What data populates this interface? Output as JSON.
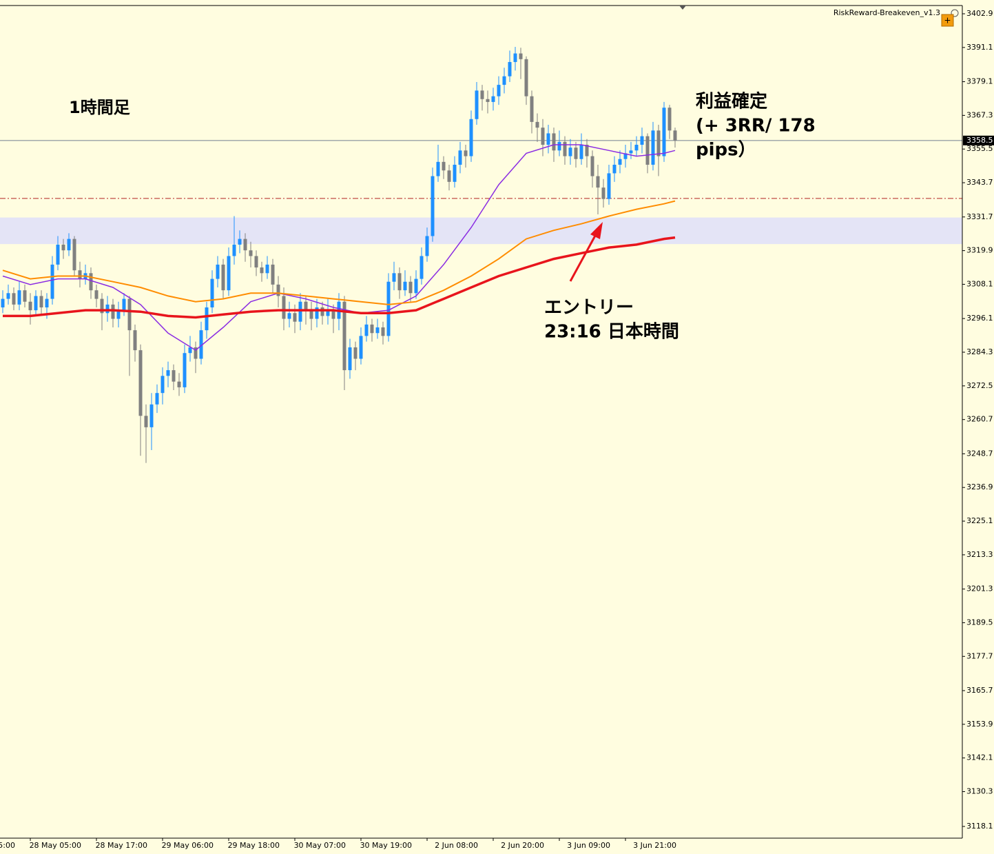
{
  "chart_data": {
    "type": "candlestick",
    "indicator_label": "RiskReward-Breakeven_v1.3",
    "up_color": "#1e90ff",
    "down_color": "#808080",
    "ylim": [
      3114.0,
      3405.8
    ],
    "yticks": [
      {
        "value": 3402.9,
        "label": "3402.9"
      },
      {
        "value": 3391.1,
        "label": "3391.1"
      },
      {
        "value": 3379.1,
        "label": "3379.1"
      },
      {
        "value": 3367.3,
        "label": "3367.3"
      },
      {
        "value": 3355.5,
        "label": "3355.5"
      },
      {
        "value": 3343.7,
        "label": "3343.7"
      },
      {
        "value": 3331.7,
        "label": "3331.7"
      },
      {
        "value": 3319.9,
        "label": "3319.9"
      },
      {
        "value": 3308.1,
        "label": "3308.1"
      },
      {
        "value": 3296.1,
        "label": "3296.1"
      },
      {
        "value": 3284.3,
        "label": "3284.3"
      },
      {
        "value": 3272.5,
        "label": "3272.5"
      },
      {
        "value": 3260.7,
        "label": "3260.7"
      },
      {
        "value": 3248.7,
        "label": "3248.7"
      },
      {
        "value": 3236.9,
        "label": "3236.9"
      },
      {
        "value": 3225.1,
        "label": "3225.1"
      },
      {
        "value": 3213.3,
        "label": "3213.3"
      },
      {
        "value": 3201.3,
        "label": "3201.3"
      },
      {
        "value": 3189.5,
        "label": "3189.5"
      },
      {
        "value": 3177.7,
        "label": "3177.7"
      },
      {
        "value": 3165.7,
        "label": "3165.7"
      },
      {
        "value": 3153.9,
        "label": "3153.9"
      },
      {
        "value": 3142.1,
        "label": "3142.1"
      },
      {
        "value": 3130.3,
        "label": "3130.3"
      },
      {
        "value": 3118.1,
        "label": "3118.1"
      }
    ],
    "xticks": [
      {
        "value": -7,
        "label": "5:00"
      },
      {
        "value": 5,
        "label": "28 May 05:00"
      },
      {
        "value": 17,
        "label": "28 May 17:00"
      },
      {
        "value": 29,
        "label": "29 May 06:00"
      },
      {
        "value": 41,
        "label": "29 May 18:00"
      },
      {
        "value": 53,
        "label": "30 May 07:00"
      },
      {
        "value": 65,
        "label": "30 May 19:00"
      },
      {
        "value": 77,
        "label": "2 Jun 08:00"
      },
      {
        "value": 89,
        "label": "2 Jun 20:00"
      },
      {
        "value": 101,
        "label": "3 Jun 09:00"
      },
      {
        "value": 113,
        "label": "3 Jun 21:00"
      }
    ],
    "last_price": 3358.5,
    "zone": {
      "from": 3322.2,
      "to": 3331.5,
      "color": "#e4e4f6"
    },
    "level": {
      "value": 3338.2,
      "color": "#b22222"
    },
    "ohlc": [
      [
        3300,
        3306,
        3298,
        3303
      ],
      [
        3303,
        3308,
        3301,
        3305
      ],
      [
        3305,
        3307,
        3299,
        3301
      ],
      [
        3301,
        3309,
        3299,
        3306
      ],
      [
        3306,
        3308,
        3300,
        3302
      ],
      [
        3302,
        3305,
        3294,
        3299
      ],
      [
        3299,
        3306,
        3297,
        3304
      ],
      [
        3304,
        3306,
        3297,
        3300
      ],
      [
        3300,
        3305,
        3296,
        3303
      ],
      [
        3303,
        3318,
        3301,
        3315
      ],
      [
        3315,
        3325,
        3313,
        3322
      ],
      [
        3322,
        3324,
        3317,
        3320
      ],
      [
        3320,
        3326,
        3318,
        3324
      ],
      [
        3324,
        3325,
        3311,
        3313
      ],
      [
        3313,
        3316,
        3307,
        3310
      ],
      [
        3310,
        3315,
        3308,
        3312
      ],
      [
        3312,
        3314,
        3303,
        3306
      ],
      [
        3306,
        3308,
        3300,
        3303
      ],
      [
        3303,
        3305,
        3292,
        3298
      ],
      [
        3298,
        3304,
        3295,
        3301
      ],
      [
        3301,
        3303,
        3293,
        3296
      ],
      [
        3296,
        3302,
        3293,
        3299
      ],
      [
        3299,
        3305,
        3297,
        3303
      ],
      [
        3303,
        3304,
        3276,
        3292
      ],
      [
        3292,
        3294,
        3281,
        3285
      ],
      [
        3285,
        3287,
        3248,
        3262
      ],
      [
        3262,
        3266,
        3245.5,
        3258
      ],
      [
        3258,
        3270,
        3250,
        3266
      ],
      [
        3266,
        3273,
        3263,
        3270
      ],
      [
        3270,
        3279,
        3266,
        3276
      ],
      [
        3276,
        3281,
        3272,
        3278
      ],
      [
        3278,
        3280,
        3271,
        3274
      ],
      [
        3274,
        3277,
        3269,
        3272
      ],
      [
        3272,
        3287,
        3270,
        3284
      ],
      [
        3284,
        3290,
        3281,
        3286
      ],
      [
        3286,
        3288,
        3277,
        3282
      ],
      [
        3282,
        3295,
        3280,
        3292
      ],
      [
        3292,
        3302,
        3289,
        3300
      ],
      [
        3300,
        3313,
        3298,
        3310
      ],
      [
        3310,
        3318,
        3307,
        3315
      ],
      [
        3315,
        3317,
        3303,
        3306
      ],
      [
        3306,
        3321,
        3304,
        3318
      ],
      [
        3318,
        3332,
        3315,
        3322
      ],
      [
        3322,
        3327,
        3319,
        3324
      ],
      [
        3324,
        3326,
        3316,
        3320
      ],
      [
        3320,
        3323,
        3314,
        3318
      ],
      [
        3318,
        3320,
        3311,
        3314
      ],
      [
        3314,
        3316,
        3309,
        3312
      ],
      [
        3312,
        3318,
        3310,
        3315
      ],
      [
        3315,
        3317,
        3305,
        3308
      ],
      [
        3308,
        3311,
        3300,
        3304
      ],
      [
        3304,
        3307,
        3292,
        3296
      ],
      [
        3296,
        3302,
        3293,
        3298
      ],
      [
        3298,
        3301,
        3291,
        3295
      ],
      [
        3295,
        3305,
        3292,
        3302
      ],
      [
        3302,
        3304,
        3294,
        3299
      ],
      [
        3299,
        3302,
        3292,
        3296
      ],
      [
        3296,
        3303,
        3293,
        3300
      ],
      [
        3300,
        3302,
        3294,
        3297
      ],
      [
        3297,
        3303,
        3294,
        3299
      ],
      [
        3299,
        3301,
        3291,
        3296
      ],
      [
        3296,
        3305,
        3292,
        3302
      ],
      [
        3302,
        3304,
        3271,
        3278
      ],
      [
        3278,
        3289,
        3275,
        3286
      ],
      [
        3286,
        3288,
        3278,
        3282
      ],
      [
        3282,
        3293,
        3280,
        3290
      ],
      [
        3290,
        3297,
        3288,
        3294
      ],
      [
        3294,
        3296,
        3288,
        3291
      ],
      [
        3291,
        3296,
        3289,
        3293
      ],
      [
        3293,
        3295,
        3287,
        3290
      ],
      [
        3290,
        3312,
        3288,
        3309
      ],
      [
        3309,
        3316,
        3306,
        3312
      ],
      [
        3312,
        3314,
        3303,
        3306
      ],
      [
        3306,
        3313,
        3304,
        3309
      ],
      [
        3309,
        3311,
        3302,
        3305
      ],
      [
        3305,
        3313,
        3303,
        3310
      ],
      [
        3310,
        3321,
        3308,
        3318
      ],
      [
        3318,
        3328,
        3316,
        3325
      ],
      [
        3325,
        3349,
        3323,
        3346
      ],
      [
        3346,
        3357,
        3344,
        3351
      ],
      [
        3351,
        3353,
        3345,
        3348
      ],
      [
        3348,
        3350,
        3341,
        3344
      ],
      [
        3344,
        3353,
        3342,
        3350
      ],
      [
        3350,
        3358,
        3347,
        3355
      ],
      [
        3355,
        3357,
        3349,
        3353
      ],
      [
        3353,
        3369,
        3351,
        3366
      ],
      [
        3366,
        3379,
        3364,
        3376
      ],
      [
        3376,
        3378,
        3369,
        3373
      ],
      [
        3373,
        3376,
        3368,
        3372
      ],
      [
        3372,
        3377,
        3369,
        3374
      ],
      [
        3374,
        3381,
        3371,
        3378
      ],
      [
        3378,
        3384,
        3375,
        3381
      ],
      [
        3381,
        3390,
        3379,
        3386
      ],
      [
        3386,
        3391.3,
        3383,
        3389
      ],
      [
        3389,
        3391,
        3380,
        3387
      ],
      [
        3387,
        3388,
        3371,
        3374
      ],
      [
        3374,
        3376,
        3361,
        3365
      ],
      [
        3365,
        3368,
        3358,
        3363
      ],
      [
        3363,
        3366,
        3353,
        3357
      ],
      [
        3357,
        3364,
        3354,
        3361
      ],
      [
        3361,
        3363,
        3351,
        3355
      ],
      [
        3355,
        3362,
        3353,
        3358
      ],
      [
        3358,
        3360,
        3350,
        3353
      ],
      [
        3353,
        3359,
        3350,
        3356
      ],
      [
        3356,
        3358,
        3349,
        3352
      ],
      [
        3352,
        3361,
        3350,
        3357
      ],
      [
        3357,
        3359,
        3349,
        3353
      ],
      [
        3353,
        3355,
        3342,
        3346
      ],
      [
        3346,
        3350,
        3332.6,
        3342
      ],
      [
        3342,
        3345,
        3335,
        3338
      ],
      [
        3338,
        3350,
        3336,
        3347
      ],
      [
        3347,
        3353,
        3344,
        3350
      ],
      [
        3350,
        3355,
        3347,
        3352
      ],
      [
        3352,
        3357,
        3349,
        3354
      ],
      [
        3354,
        3358,
        3352,
        3355
      ],
      [
        3355,
        3360,
        3353,
        3357
      ],
      [
        3357,
        3363,
        3354,
        3360
      ],
      [
        3360,
        3361,
        3347,
        3350
      ],
      [
        3350,
        3365,
        3348,
        3362
      ],
      [
        3362,
        3364,
        3346,
        3353
      ],
      [
        3353,
        3372,
        3351,
        3370
      ],
      [
        3370,
        3371,
        3359,
        3362
      ],
      [
        3362,
        3363,
        3356,
        3358.5
      ]
    ],
    "lines": [
      {
        "color": "#8a2be2",
        "width": 1.5,
        "x": [
          0,
          5,
          10,
          15,
          20,
          25,
          30,
          35,
          40,
          45,
          50,
          55,
          60,
          65,
          70,
          75,
          80,
          85,
          90,
          95,
          100,
          105,
          110,
          115,
          120,
          122
        ],
        "values": [
          3311,
          3308,
          3310,
          3310,
          3307,
          3301,
          3291,
          3285,
          3293,
          3302,
          3305,
          3303,
          3300,
          3298,
          3299,
          3304,
          3315,
          3328,
          3343,
          3354,
          3357,
          3357,
          3355,
          3353,
          3354,
          3355
        ]
      },
      {
        "color": "#ff8c00",
        "width": 2,
        "x": [
          0,
          5,
          10,
          15,
          20,
          25,
          30,
          35,
          40,
          45,
          50,
          55,
          60,
          65,
          70,
          75,
          80,
          85,
          90,
          95,
          100,
          105,
          110,
          115,
          120,
          122
        ],
        "values": [
          3313,
          3310,
          3311,
          3311,
          3309,
          3307,
          3304,
          3302,
          3303,
          3305,
          3305,
          3304,
          3303,
          3302,
          3301,
          3302,
          3306,
          3311,
          3317,
          3324,
          3327,
          3329.3,
          3332,
          3334.4,
          3336.3,
          3337.3
        ]
      },
      {
        "color": "#e8141c",
        "width": 3.5,
        "x": [
          0,
          5,
          10,
          15,
          20,
          25,
          30,
          35,
          40,
          45,
          50,
          55,
          60,
          65,
          70,
          75,
          80,
          85,
          90,
          95,
          100,
          105,
          110,
          115,
          120,
          122
        ],
        "values": [
          3297,
          3297,
          3298,
          3299,
          3299,
          3298.5,
          3297,
          3296.5,
          3297.5,
          3298.5,
          3299,
          3299,
          3299,
          3298,
          3298,
          3299,
          3303,
          3307,
          3311,
          3314,
          3317,
          3319,
          3321,
          3322,
          3324,
          3324.5
        ]
      }
    ],
    "annotations": {
      "timeframe": "1時間足",
      "take_profit": [
        "利益確定",
        "(+ 3RR/ 178",
        "pips）"
      ],
      "entry": [
        "エントリー",
        "23:16 日本時間"
      ]
    }
  }
}
